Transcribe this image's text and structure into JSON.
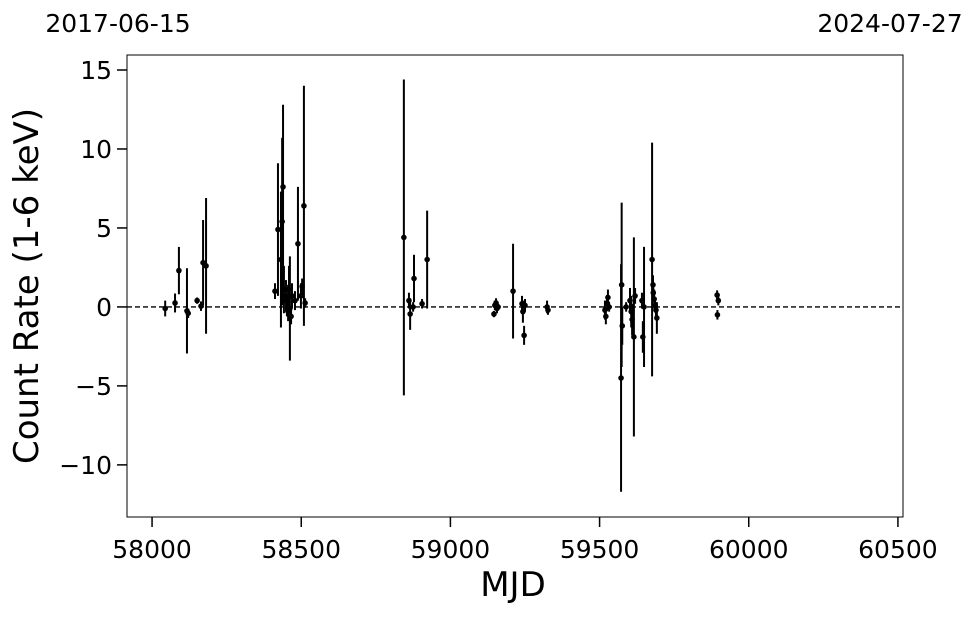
{
  "chart_data": {
    "type": "errorbar",
    "date_labels": [
      "2017-06-15",
      "2024-07-27"
    ],
    "xlabel": "MJD",
    "ylabel": "Count Rate (1-6 keV)",
    "xlim": [
      57916,
      60517
    ],
    "ylim": [
      -13.3,
      15.95
    ],
    "xticks": [
      58000,
      58500,
      59000,
      59500,
      60000,
      60500
    ],
    "yticks": [
      {
        "value": -10,
        "label": "−10"
      },
      {
        "value": -5,
        "label": "−5"
      },
      0,
      5,
      10,
      15
    ],
    "reference_line": 0,
    "color": "#000000",
    "x": [
      58044,
      58077,
      58090,
      58117,
      58121,
      58151,
      58164,
      58171,
      58181,
      58412,
      58422,
      58432,
      58436,
      58439,
      58442,
      58449,
      58452,
      58456,
      58459,
      58462,
      58466,
      58469,
      58479,
      58489,
      58499,
      58503,
      58509,
      58513,
      58844,
      58861,
      58865,
      58875,
      58878,
      58905,
      58922,
      59146,
      59149,
      59153,
      59156,
      59160,
      59210,
      59240,
      59243,
      59247,
      59250,
      59324,
      59327,
      59518,
      59521,
      59525,
      59528,
      59532,
      59572,
      59574,
      59576,
      59589,
      59602,
      59606,
      59609,
      59615,
      59619,
      59642,
      59645,
      59649,
      59676,
      59679,
      59680,
      59683,
      59686,
      59689,
      59692,
      59894,
      59898,
      59895
    ],
    "values": [
      -0.1,
      0.25,
      2.3,
      -0.25,
      -0.4,
      0.4,
      0.05,
      2.8,
      2.6,
      1.0,
      4.9,
      3.0,
      5.4,
      7.6,
      1.1,
      0.7,
      0.4,
      -0.3,
      1.1,
      -0.1,
      -0.6,
      0.7,
      0.4,
      4.0,
      0.7,
      1.3,
      6.4,
      0.25,
      4.4,
      0.4,
      -0.45,
      0.0,
      1.8,
      0.2,
      3.0,
      -0.45,
      0.1,
      0.25,
      -0.1,
      0.0,
      1.0,
      0.2,
      -0.3,
      -1.8,
      0.1,
      0.0,
      -0.2,
      -0.2,
      -0.6,
      0.25,
      0.6,
      0.0,
      -4.5,
      1.4,
      -1.2,
      0.0,
      0.4,
      -0.3,
      -0.8,
      -1.9,
      0.7,
      0.4,
      -1.9,
      0.0,
      3.0,
      1.4,
      0.9,
      0.5,
      0.1,
      -0.2,
      -0.7,
      0.75,
      0.4,
      -0.5
    ],
    "errors": [
      0.5,
      0.6,
      1.5,
      2.7,
      0.3,
      0.2,
      0.3,
      2.7,
      4.3,
      0.5,
      4.2,
      4.3,
      5.3,
      5.2,
      1.5,
      1.0,
      1.0,
      0.6,
      1.5,
      3.3,
      0.5,
      0.8,
      0.6,
      3.6,
      0.8,
      0.5,
      7.6,
      0.3,
      10.0,
      0.5,
      1.0,
      0.3,
      1.5,
      0.3,
      3.1,
      0.2,
      0.3,
      0.3,
      0.3,
      0.2,
      3.0,
      0.5,
      0.7,
      0.6,
      0.4,
      0.4,
      0.3,
      0.6,
      0.5,
      0.5,
      0.5,
      0.3,
      7.2,
      5.2,
      1.2,
      0.3,
      0.8,
      1.0,
      1.0,
      6.3,
      0.5,
      0.5,
      1.0,
      3.8,
      7.4,
      0.6,
      0.4,
      0.6,
      0.4,
      0.5,
      1.0,
      0.3,
      0.3,
      0.3
    ]
  }
}
